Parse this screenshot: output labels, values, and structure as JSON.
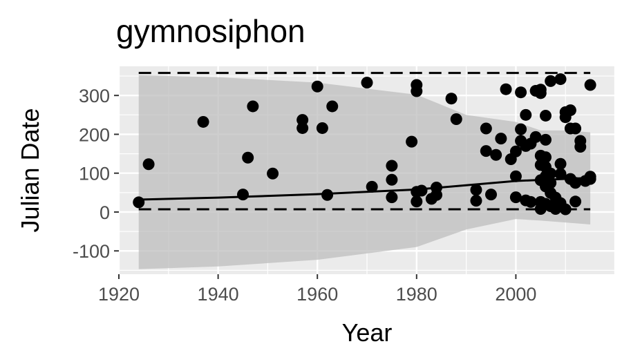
{
  "chart_data": {
    "type": "scatter",
    "title": "gymnosiphon",
    "xlabel": "Year",
    "ylabel": "Julian Date",
    "xlim": [
      1920,
      2020
    ],
    "ylim": [
      -160,
      375
    ],
    "x_ticks": [
      1920,
      1940,
      1960,
      1980,
      2000
    ],
    "y_ticks": [
      -100,
      0,
      100,
      200,
      300
    ],
    "y_tick_labels": [
      "-100",
      "0",
      "100",
      "200",
      "300"
    ],
    "grid": true,
    "points": [
      {
        "x": 1924,
        "y": 25
      },
      {
        "x": 1926,
        "y": 123
      },
      {
        "x": 1937,
        "y": 232
      },
      {
        "x": 1945,
        "y": 45
      },
      {
        "x": 1946,
        "y": 140
      },
      {
        "x": 1947,
        "y": 272
      },
      {
        "x": 1951,
        "y": 99
      },
      {
        "x": 1957,
        "y": 237
      },
      {
        "x": 1957,
        "y": 216
      },
      {
        "x": 1960,
        "y": 323
      },
      {
        "x": 1961,
        "y": 216
      },
      {
        "x": 1962,
        "y": 44
      },
      {
        "x": 1963,
        "y": 272
      },
      {
        "x": 1970,
        "y": 333
      },
      {
        "x": 1971,
        "y": 65
      },
      {
        "x": 1975,
        "y": 119
      },
      {
        "x": 1975,
        "y": 83
      },
      {
        "x": 1975,
        "y": 38
      },
      {
        "x": 1979,
        "y": 181
      },
      {
        "x": 1980,
        "y": 327
      },
      {
        "x": 1980,
        "y": 311
      },
      {
        "x": 1980,
        "y": 52
      },
      {
        "x": 1980,
        "y": 27
      },
      {
        "x": 1981,
        "y": 55
      },
      {
        "x": 1983,
        "y": 34
      },
      {
        "x": 1984,
        "y": 63
      },
      {
        "x": 1984,
        "y": 44
      },
      {
        "x": 1987,
        "y": 292
      },
      {
        "x": 1988,
        "y": 239
      },
      {
        "x": 1992,
        "y": 57
      },
      {
        "x": 1992,
        "y": 29
      },
      {
        "x": 1994,
        "y": 215
      },
      {
        "x": 1994,
        "y": 157
      },
      {
        "x": 1995,
        "y": 45
      },
      {
        "x": 1996,
        "y": 147
      },
      {
        "x": 1997,
        "y": 189
      },
      {
        "x": 1998,
        "y": 316
      },
      {
        "x": 1999,
        "y": 136
      },
      {
        "x": 2000,
        "y": 156
      },
      {
        "x": 2000,
        "y": 92
      },
      {
        "x": 2000,
        "y": 38
      },
      {
        "x": 2001,
        "y": 308
      },
      {
        "x": 2001,
        "y": 213
      },
      {
        "x": 2001,
        "y": 183
      },
      {
        "x": 2002,
        "y": 250
      },
      {
        "x": 2002,
        "y": 170
      },
      {
        "x": 2002,
        "y": 30
      },
      {
        "x": 2003,
        "y": 176
      },
      {
        "x": 2003,
        "y": 26
      },
      {
        "x": 2004,
        "y": 312
      },
      {
        "x": 2004,
        "y": 193
      },
      {
        "x": 2005,
        "y": 315
      },
      {
        "x": 2005,
        "y": 306
      },
      {
        "x": 2005,
        "y": 145
      },
      {
        "x": 2005,
        "y": 121
      },
      {
        "x": 2005,
        "y": 82
      },
      {
        "x": 2005,
        "y": 26
      },
      {
        "x": 2005,
        "y": 8
      },
      {
        "x": 2006,
        "y": 248
      },
      {
        "x": 2006,
        "y": 186
      },
      {
        "x": 2006,
        "y": 141
      },
      {
        "x": 2006,
        "y": 116
      },
      {
        "x": 2006,
        "y": 92
      },
      {
        "x": 2006,
        "y": 66
      },
      {
        "x": 2006,
        "y": 21
      },
      {
        "x": 2007,
        "y": 337
      },
      {
        "x": 2007,
        "y": 99
      },
      {
        "x": 2007,
        "y": 75
      },
      {
        "x": 2007,
        "y": 49
      },
      {
        "x": 2007,
        "y": 15
      },
      {
        "x": 2008,
        "y": 37
      },
      {
        "x": 2008,
        "y": 8
      },
      {
        "x": 2009,
        "y": 342
      },
      {
        "x": 2009,
        "y": 124
      },
      {
        "x": 2009,
        "y": 98
      },
      {
        "x": 2009,
        "y": 23
      },
      {
        "x": 2010,
        "y": 257
      },
      {
        "x": 2010,
        "y": 244
      },
      {
        "x": 2010,
        "y": 7
      },
      {
        "x": 2011,
        "y": 262
      },
      {
        "x": 2011,
        "y": 215
      },
      {
        "x": 2011,
        "y": 85
      },
      {
        "x": 2012,
        "y": 215
      },
      {
        "x": 2012,
        "y": 75
      },
      {
        "x": 2012,
        "y": 27
      },
      {
        "x": 2013,
        "y": 183
      },
      {
        "x": 2013,
        "y": 168
      },
      {
        "x": 2014,
        "y": 80
      },
      {
        "x": 2015,
        "y": 327
      },
      {
        "x": 2015,
        "y": 91
      },
      {
        "x": 2015,
        "y": 85
      }
    ],
    "trend": {
      "x": [
        1924,
        1940,
        1960,
        1980,
        2000,
        2015
      ],
      "y": [
        32,
        37,
        46,
        58,
        80,
        88
      ]
    },
    "band": {
      "x": [
        1924,
        1940,
        1960,
        1980,
        1990,
        2000,
        2005,
        2010,
        2015
      ],
      "upper": [
        352,
        347,
        333,
        302,
        250,
        232,
        210,
        210,
        205
      ],
      "lower": [
        -147,
        -140,
        -123,
        -90,
        -45,
        -18,
        -22,
        -27,
        -32
      ]
    },
    "dashed_upper": [
      {
        "x": 1924,
        "y": 358
      },
      {
        "x": 2015,
        "y": 358
      }
    ],
    "dashed_lower": [
      {
        "x": 1924,
        "y": 7
      },
      {
        "x": 2015,
        "y": 7
      }
    ]
  }
}
